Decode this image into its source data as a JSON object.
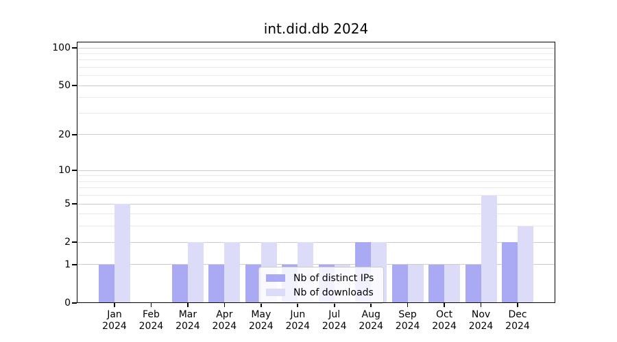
{
  "chart_data": {
    "type": "bar",
    "title": "int.did.db 2024",
    "x": {
      "months": [
        "Jan",
        "Feb",
        "Mar",
        "Apr",
        "May",
        "Jun",
        "Jul",
        "Aug",
        "Sep",
        "Oct",
        "Nov",
        "Dec"
      ],
      "year": "2024"
    },
    "series": [
      {
        "name": "Nb of distinct IPs",
        "color": "#a9a9f4",
        "values": [
          1,
          0,
          1,
          1,
          1,
          1,
          1,
          2,
          1,
          1,
          1,
          2
        ]
      },
      {
        "name": "Nb of downloads",
        "color": "#dcdcf8",
        "values": [
          5,
          0,
          2,
          2,
          2,
          2,
          1,
          2,
          1,
          1,
          6,
          3
        ]
      }
    ],
    "y_axis": {
      "scale": "log1p",
      "ticks": [
        0,
        1,
        2,
        5,
        10,
        20,
        50,
        100
      ],
      "minor_gridlines": [
        3,
        4,
        6,
        7,
        8,
        9,
        30,
        40,
        60,
        70,
        80,
        90
      ],
      "ylim": [
        0,
        112
      ]
    },
    "legend": {
      "position": "lower center"
    },
    "grid": true,
    "colors": {
      "major_grid": "#cccccc",
      "minor_grid": "#e9e9e9",
      "axis": "#000000",
      "legend_border": "#cccccc",
      "legend_bg": "rgba(255,255,255,0.85)"
    }
  }
}
